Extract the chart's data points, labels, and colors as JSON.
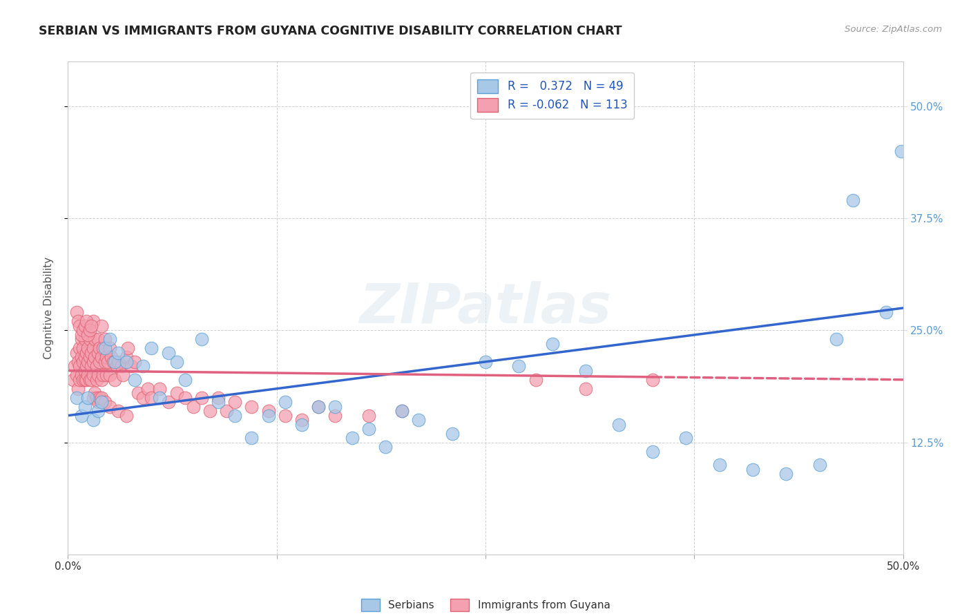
{
  "title": "SERBIAN VS IMMIGRANTS FROM GUYANA COGNITIVE DISABILITY CORRELATION CHART",
  "source": "Source: ZipAtlas.com",
  "ylabel": "Cognitive Disability",
  "xlim": [
    0.0,
    0.5
  ],
  "ylim": [
    0.0,
    0.55
  ],
  "series_serbian": {
    "color": "#a8c8e8",
    "edge_color": "#5a9fd4",
    "R": 0.372,
    "N": 49,
    "trend_color": "#3366cc",
    "trend_start_y": 0.155,
    "trend_end_y": 0.275
  },
  "series_guyana": {
    "color": "#f4a0b0",
    "edge_color": "#e06070",
    "R": -0.062,
    "N": 113,
    "trend_color": "#e06080",
    "trend_start_y": 0.205,
    "trend_end_y": 0.195
  },
  "legend_label_serbian": "Serbians",
  "legend_label_guyana": "Immigrants from Guyana",
  "watermark": "ZIPatlas",
  "background_color": "#ffffff",
  "grid_color": "#cccccc",
  "title_color": "#222222",
  "axis_label_color": "#555555",
  "right_tick_color": "#5b9bd5",
  "serbian_points_x": [
    0.005,
    0.008,
    0.01,
    0.012,
    0.015,
    0.018,
    0.02,
    0.022,
    0.025,
    0.028,
    0.03,
    0.035,
    0.04,
    0.045,
    0.05,
    0.055,
    0.06,
    0.065,
    0.07,
    0.08,
    0.09,
    0.1,
    0.11,
    0.12,
    0.13,
    0.14,
    0.15,
    0.16,
    0.17,
    0.18,
    0.19,
    0.2,
    0.21,
    0.23,
    0.25,
    0.27,
    0.29,
    0.31,
    0.33,
    0.35,
    0.37,
    0.39,
    0.41,
    0.43,
    0.45,
    0.46,
    0.47,
    0.49,
    0.499
  ],
  "serbian_points_y": [
    0.175,
    0.155,
    0.165,
    0.175,
    0.15,
    0.16,
    0.17,
    0.23,
    0.24,
    0.215,
    0.225,
    0.215,
    0.195,
    0.21,
    0.23,
    0.175,
    0.225,
    0.215,
    0.195,
    0.24,
    0.17,
    0.155,
    0.13,
    0.155,
    0.17,
    0.145,
    0.165,
    0.165,
    0.13,
    0.14,
    0.12,
    0.16,
    0.15,
    0.135,
    0.215,
    0.21,
    0.235,
    0.205,
    0.145,
    0.115,
    0.13,
    0.1,
    0.095,
    0.09,
    0.1,
    0.24,
    0.395,
    0.27,
    0.45
  ],
  "guyana_points_x": [
    0.003,
    0.004,
    0.005,
    0.005,
    0.006,
    0.006,
    0.007,
    0.007,
    0.007,
    0.008,
    0.008,
    0.008,
    0.009,
    0.009,
    0.009,
    0.01,
    0.01,
    0.01,
    0.01,
    0.011,
    0.011,
    0.011,
    0.012,
    0.012,
    0.012,
    0.012,
    0.013,
    0.013,
    0.013,
    0.014,
    0.014,
    0.014,
    0.015,
    0.015,
    0.015,
    0.015,
    0.016,
    0.016,
    0.017,
    0.017,
    0.018,
    0.018,
    0.018,
    0.019,
    0.019,
    0.02,
    0.02,
    0.02,
    0.021,
    0.021,
    0.022,
    0.022,
    0.023,
    0.023,
    0.024,
    0.025,
    0.025,
    0.026,
    0.027,
    0.028,
    0.029,
    0.03,
    0.032,
    0.033,
    0.035,
    0.036,
    0.038,
    0.04,
    0.042,
    0.045,
    0.048,
    0.05,
    0.055,
    0.06,
    0.065,
    0.07,
    0.075,
    0.08,
    0.085,
    0.09,
    0.095,
    0.1,
    0.11,
    0.12,
    0.13,
    0.14,
    0.15,
    0.16,
    0.18,
    0.2,
    0.005,
    0.006,
    0.007,
    0.008,
    0.009,
    0.01,
    0.011,
    0.012,
    0.013,
    0.014,
    0.015,
    0.016,
    0.017,
    0.018,
    0.019,
    0.02,
    0.022,
    0.025,
    0.03,
    0.035,
    0.28,
    0.31,
    0.35
  ],
  "guyana_points_y": [
    0.195,
    0.21,
    0.2,
    0.225,
    0.185,
    0.215,
    0.195,
    0.21,
    0.23,
    0.2,
    0.22,
    0.24,
    0.195,
    0.215,
    0.23,
    0.205,
    0.22,
    0.195,
    0.24,
    0.21,
    0.225,
    0.195,
    0.215,
    0.23,
    0.2,
    0.25,
    0.22,
    0.195,
    0.24,
    0.21,
    0.225,
    0.195,
    0.215,
    0.2,
    0.23,
    0.26,
    0.22,
    0.24,
    0.195,
    0.21,
    0.225,
    0.2,
    0.24,
    0.215,
    0.23,
    0.195,
    0.255,
    0.22,
    0.2,
    0.23,
    0.215,
    0.24,
    0.2,
    0.22,
    0.215,
    0.23,
    0.2,
    0.22,
    0.215,
    0.195,
    0.21,
    0.215,
    0.21,
    0.2,
    0.22,
    0.23,
    0.21,
    0.215,
    0.18,
    0.175,
    0.185,
    0.175,
    0.185,
    0.17,
    0.18,
    0.175,
    0.165,
    0.175,
    0.16,
    0.175,
    0.16,
    0.17,
    0.165,
    0.16,
    0.155,
    0.15,
    0.165,
    0.155,
    0.155,
    0.16,
    0.27,
    0.26,
    0.255,
    0.245,
    0.25,
    0.255,
    0.26,
    0.245,
    0.25,
    0.255,
    0.175,
    0.18,
    0.175,
    0.17,
    0.175,
    0.175,
    0.17,
    0.165,
    0.16,
    0.155,
    0.195,
    0.185,
    0.195
  ]
}
